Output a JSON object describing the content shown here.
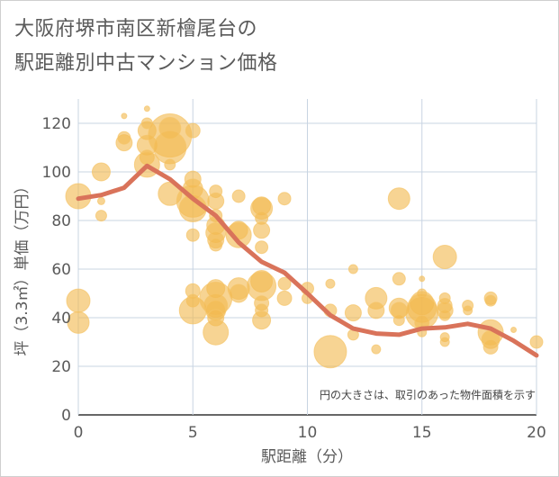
{
  "title": {
    "line1": "大阪府堺市南区新檜尾台の",
    "line2": "駅距離別中古マンション価格"
  },
  "chart_data": {
    "type": "scatter",
    "xlabel": "駅距離（分）",
    "ylabel": "坪（3.3㎡）単価（万円）",
    "xlim": [
      0,
      20
    ],
    "ylim": [
      0,
      130
    ],
    "xticks": [
      0,
      5,
      10,
      15,
      20
    ],
    "yticks": [
      0,
      20,
      40,
      60,
      80,
      100,
      120
    ],
    "grid": true,
    "annotation": "円の大きさは、取引のあった物件面積を示す",
    "colors": {
      "bubble": "#f2b950",
      "line": "#d9735a"
    },
    "trend_line": {
      "x": [
        0,
        1,
        2,
        3,
        4,
        5,
        6,
        7,
        8,
        9,
        10,
        11,
        12,
        13,
        14,
        15,
        16,
        17,
        18,
        19,
        20
      ],
      "y": [
        89,
        90.5,
        93.5,
        102.5,
        97,
        89,
        82,
        71,
        63,
        58.5,
        50,
        41,
        35.5,
        33.5,
        33,
        35.5,
        36,
        37.5,
        35.5,
        30.5,
        24.5
      ]
    },
    "bubbles": [
      {
        "x": 0,
        "y": 90,
        "s": 14
      },
      {
        "x": 0,
        "y": 47,
        "s": 13
      },
      {
        "x": 0,
        "y": 38,
        "s": 12
      },
      {
        "x": 1,
        "y": 100,
        "s": 10
      },
      {
        "x": 1,
        "y": 82,
        "s": 6
      },
      {
        "x": 1,
        "y": 88,
        "s": 4
      },
      {
        "x": 2,
        "y": 112,
        "s": 9
      },
      {
        "x": 2,
        "y": 114,
        "s": 7
      },
      {
        "x": 2,
        "y": 123,
        "s": 3
      },
      {
        "x": 3,
        "y": 117,
        "s": 10
      },
      {
        "x": 3,
        "y": 111,
        "s": 11
      },
      {
        "x": 3,
        "y": 106,
        "s": 8
      },
      {
        "x": 3,
        "y": 103,
        "s": 14
      },
      {
        "x": 3,
        "y": 120,
        "s": 6
      },
      {
        "x": 3,
        "y": 126,
        "s": 3
      },
      {
        "x": 4,
        "y": 115,
        "s": 24
      },
      {
        "x": 4,
        "y": 110,
        "s": 18
      },
      {
        "x": 4,
        "y": 118,
        "s": 12
      },
      {
        "x": 4,
        "y": 91,
        "s": 13
      },
      {
        "x": 4,
        "y": 103,
        "s": 6
      },
      {
        "x": 5,
        "y": 117,
        "s": 8
      },
      {
        "x": 5,
        "y": 97,
        "s": 9
      },
      {
        "x": 5,
        "y": 93,
        "s": 11
      },
      {
        "x": 5,
        "y": 88,
        "s": 18
      },
      {
        "x": 5,
        "y": 85,
        "s": 15
      },
      {
        "x": 5,
        "y": 74,
        "s": 7
      },
      {
        "x": 5,
        "y": 51,
        "s": 8
      },
      {
        "x": 5,
        "y": 47,
        "s": 7
      },
      {
        "x": 5,
        "y": 43,
        "s": 15
      },
      {
        "x": 6,
        "y": 92,
        "s": 7
      },
      {
        "x": 6,
        "y": 88,
        "s": 9
      },
      {
        "x": 6,
        "y": 82,
        "s": 7
      },
      {
        "x": 6,
        "y": 78,
        "s": 10
      },
      {
        "x": 6,
        "y": 75,
        "s": 11
      },
      {
        "x": 6,
        "y": 72,
        "s": 9
      },
      {
        "x": 6,
        "y": 70,
        "s": 7
      },
      {
        "x": 6,
        "y": 52,
        "s": 10
      },
      {
        "x": 6,
        "y": 48,
        "s": 18
      },
      {
        "x": 6,
        "y": 45,
        "s": 13
      },
      {
        "x": 6,
        "y": 43,
        "s": 11
      },
      {
        "x": 6,
        "y": 40,
        "s": 9
      },
      {
        "x": 6,
        "y": 34,
        "s": 14
      },
      {
        "x": 7,
        "y": 90,
        "s": 7
      },
      {
        "x": 7,
        "y": 76,
        "s": 10
      },
      {
        "x": 7,
        "y": 74,
        "s": 14
      },
      {
        "x": 7,
        "y": 52,
        "s": 12
      },
      {
        "x": 7,
        "y": 50,
        "s": 10
      },
      {
        "x": 8,
        "y": 86,
        "s": 10
      },
      {
        "x": 8,
        "y": 85,
        "s": 12
      },
      {
        "x": 8,
        "y": 81,
        "s": 7
      },
      {
        "x": 8,
        "y": 76,
        "s": 9
      },
      {
        "x": 8,
        "y": 69,
        "s": 7
      },
      {
        "x": 8,
        "y": 55,
        "s": 12
      },
      {
        "x": 8,
        "y": 53,
        "s": 16
      },
      {
        "x": 8,
        "y": 46,
        "s": 8
      },
      {
        "x": 8,
        "y": 43,
        "s": 7
      },
      {
        "x": 8,
        "y": 39,
        "s": 10
      },
      {
        "x": 9,
        "y": 89,
        "s": 7
      },
      {
        "x": 9,
        "y": 54,
        "s": 7
      },
      {
        "x": 9,
        "y": 48,
        "s": 8
      },
      {
        "x": 10,
        "y": 52,
        "s": 7
      },
      {
        "x": 10,
        "y": 48,
        "s": 6
      },
      {
        "x": 11,
        "y": 54,
        "s": 5
      },
      {
        "x": 11,
        "y": 43,
        "s": 7
      },
      {
        "x": 11,
        "y": 26,
        "s": 18
      },
      {
        "x": 12,
        "y": 60,
        "s": 5
      },
      {
        "x": 12,
        "y": 42,
        "s": 9
      },
      {
        "x": 12,
        "y": 33,
        "s": 6
      },
      {
        "x": 13,
        "y": 48,
        "s": 12
      },
      {
        "x": 13,
        "y": 43,
        "s": 9
      },
      {
        "x": 13,
        "y": 27,
        "s": 5
      },
      {
        "x": 14,
        "y": 89,
        "s": 12
      },
      {
        "x": 14,
        "y": 56,
        "s": 7
      },
      {
        "x": 14,
        "y": 44,
        "s": 11
      },
      {
        "x": 14,
        "y": 43,
        "s": 9
      },
      {
        "x": 14,
        "y": 39,
        "s": 6
      },
      {
        "x": 15,
        "y": 56,
        "s": 3
      },
      {
        "x": 15,
        "y": 50,
        "s": 5
      },
      {
        "x": 15,
        "y": 46,
        "s": 13
      },
      {
        "x": 15,
        "y": 44,
        "s": 16
      },
      {
        "x": 15,
        "y": 42,
        "s": 18
      },
      {
        "x": 15,
        "y": 38,
        "s": 8
      },
      {
        "x": 15,
        "y": 34,
        "s": 5
      },
      {
        "x": 16,
        "y": 65,
        "s": 13
      },
      {
        "x": 16,
        "y": 48,
        "s": 6
      },
      {
        "x": 16,
        "y": 45,
        "s": 8
      },
      {
        "x": 16,
        "y": 43,
        "s": 9
      },
      {
        "x": 16,
        "y": 41,
        "s": 6
      },
      {
        "x": 16,
        "y": 32,
        "s": 5
      },
      {
        "x": 16,
        "y": 30,
        "s": 5
      },
      {
        "x": 17,
        "y": 45,
        "s": 6
      },
      {
        "x": 17,
        "y": 43,
        "s": 5
      },
      {
        "x": 18,
        "y": 48,
        "s": 7
      },
      {
        "x": 18,
        "y": 47,
        "s": 6
      },
      {
        "x": 18,
        "y": 34,
        "s": 14
      },
      {
        "x": 18,
        "y": 31,
        "s": 10
      },
      {
        "x": 18,
        "y": 28,
        "s": 8
      },
      {
        "x": 19,
        "y": 35,
        "s": 3
      },
      {
        "x": 20,
        "y": 30,
        "s": 7
      }
    ]
  }
}
